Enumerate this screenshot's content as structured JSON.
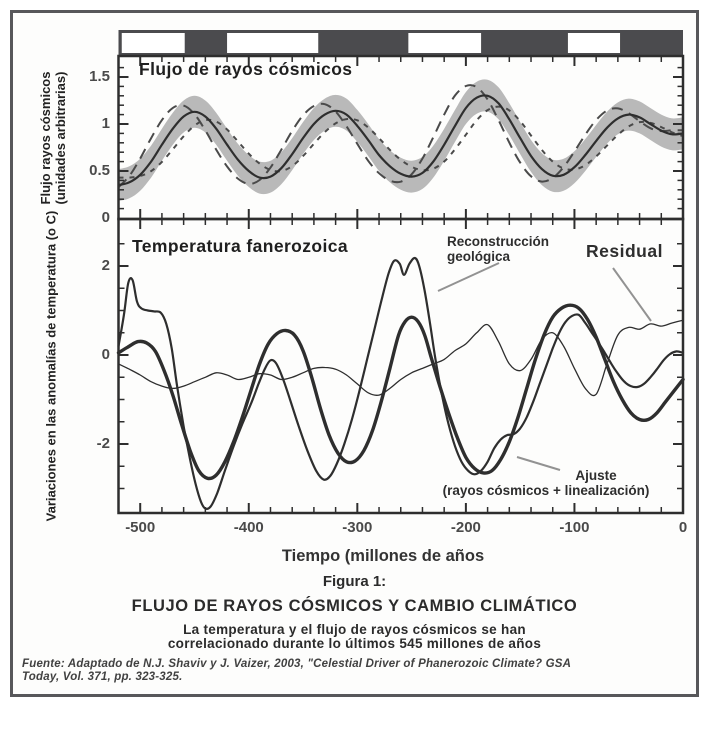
{
  "figure": {
    "caption_label": "Figura 1:",
    "caption_title": "FLUJO DE RAYOS CÓSMICOS Y CAMBIO CLIMÁTICO",
    "caption_sub1": "La temperatura y el flujo de rayos cósmicos se han",
    "caption_sub2": "correlacionado durante lo últimos  545 millones de años",
    "source_line1": "Fuente: Adaptado de N.J. Shaviv y J. Vaizer, 2003, \"Celestial Driver of Phanerozoic Climate? GSA",
    "source_line2": "Today, Vol. 371, pp. 323-325."
  },
  "flux_panel": {
    "title": "Flujo de rayos cósmicos",
    "ylabel_line1": "Flujo rayos cósmicos",
    "ylabel_line2": "(unidades arbitrarias)",
    "yticks": [
      {
        "label": "1.5",
        "v": 1.5
      },
      {
        "label": "1",
        "v": 1.0
      },
      {
        "label": "0.5",
        "v": 0.5
      },
      {
        "label": "0",
        "v": 0.0
      }
    ]
  },
  "temp_panel": {
    "title": "Temperatura fanerozoica",
    "ylabel": "Variaciones en las anomalías de temperatura (o C)",
    "yticks": [
      {
        "label": "2",
        "v": 2
      },
      {
        "label": "0",
        "v": 0
      },
      {
        "label": "-2",
        "v": -2
      }
    ],
    "annotations": {
      "reconstruction_line1": "Reconstrucción",
      "reconstruction_line2": "geológica",
      "residual": "Residual",
      "ajuste_line1": "Ajuste",
      "ajuste_line2": "(rayos cósmicos + linealización)"
    }
  },
  "xaxis": {
    "title": "Tiempo (millones de años",
    "ticks": [
      {
        "label": "-500",
        "my": -500
      },
      {
        "label": "-400",
        "my": -400
      },
      {
        "label": "-300",
        "my": -300
      },
      {
        "label": "-200",
        "my": -200
      },
      {
        "label": "-100",
        "my": -100
      },
      {
        "label": "0",
        "my": 0
      }
    ]
  },
  "colors": {
    "band": "#b9b9b9",
    "curve": "#2e2e2e",
    "dashed": "#4a4a4a",
    "stripe_dark": "#4b4b4e",
    "stripe_white": "#ffffff",
    "leader": "#929292",
    "axis": "#2e2e2e"
  },
  "chart_data": [
    {
      "type": "line",
      "title": "Flujo de rayos cósmicos",
      "ylabel": "Flujo rayos cósmicos (unidades arbitrarias)",
      "xlim": [
        -520,
        0
      ],
      "ylim": [
        0,
        1.7
      ],
      "ytick_values": [
        0,
        0.5,
        1,
        1.5
      ],
      "grid": false,
      "band_halfwidth": 0.17,
      "epoch_bar_white_segments_my": [
        [
          -517,
          -459
        ],
        [
          -420,
          -336
        ],
        [
          -253,
          -186
        ],
        [
          -106,
          -58
        ]
      ],
      "x": [
        -520,
        -510,
        -500,
        -490,
        -480,
        -470,
        -460,
        -450,
        -440,
        -430,
        -420,
        -410,
        -400,
        -390,
        -380,
        -370,
        -360,
        -350,
        -340,
        -330,
        -320,
        -310,
        -300,
        -290,
        -280,
        -270,
        -260,
        -250,
        -240,
        -230,
        -220,
        -210,
        -200,
        -190,
        -180,
        -170,
        -160,
        -150,
        -140,
        -130,
        -120,
        -110,
        -100,
        -90,
        -80,
        -70,
        -60,
        -50,
        -40,
        -30,
        -20,
        -10,
        0
      ],
      "series": [
        {
          "name": "flux_nominal",
          "style": "solid",
          "values": [
            0.35,
            0.38,
            0.46,
            0.6,
            0.78,
            0.95,
            1.08,
            1.13,
            1.08,
            0.95,
            0.78,
            0.62,
            0.5,
            0.43,
            0.44,
            0.53,
            0.68,
            0.85,
            1.0,
            1.1,
            1.14,
            1.1,
            0.98,
            0.83,
            0.67,
            0.55,
            0.47,
            0.44,
            0.48,
            0.6,
            0.78,
            0.98,
            1.17,
            1.28,
            1.3,
            1.22,
            1.05,
            0.85,
            0.66,
            0.52,
            0.45,
            0.46,
            0.54,
            0.67,
            0.82,
            0.96,
            1.06,
            1.1,
            1.07,
            1.0,
            0.93,
            0.89,
            0.9
          ]
        },
        {
          "name": "flux_model_variant_1",
          "style": "dashed-long",
          "derived_from": "flux_nominal",
          "shift_my": -13,
          "amp_scale": 1.22,
          "amp_center": 0.75
        },
        {
          "name": "flux_model_variant_2",
          "style": "dashed-short",
          "derived_from": "flux_nominal",
          "shift_my": 13,
          "amp_scale": 0.8,
          "amp_center": 0.75
        }
      ]
    },
    {
      "type": "line",
      "title": "Temperatura fanerozoica",
      "xlabel": "Tiempo (millones de años",
      "ylabel": "Variaciones en las anomalías de temperatura (o C)",
      "xlim": [
        -520,
        0
      ],
      "ylim": [
        -3.5,
        3
      ],
      "ytick_values": [
        -2,
        0,
        2
      ],
      "grid": false,
      "series": [
        {
          "name": "reconstruccion_geologica",
          "style": "medium",
          "points": [
            [
              -520,
              0.2
            ],
            [
              -515,
              0.9
            ],
            [
              -511,
              1.62
            ],
            [
              -507,
              1.68
            ],
            [
              -503,
              1.2
            ],
            [
              -499,
              1.05
            ],
            [
              -493,
              1.0
            ],
            [
              -487,
              0.98
            ],
            [
              -481,
              0.95
            ],
            [
              -476,
              0.7
            ],
            [
              -471,
              0.15
            ],
            [
              -466,
              -0.7
            ],
            [
              -460,
              -1.6
            ],
            [
              -454,
              -2.35
            ],
            [
              -449,
              -2.9
            ],
            [
              -444,
              -3.3
            ],
            [
              -440,
              -3.45
            ],
            [
              -435,
              -3.4
            ],
            [
              -429,
              -3.1
            ],
            [
              -422,
              -2.6
            ],
            [
              -414,
              -2.05
            ],
            [
              -406,
              -1.55
            ],
            [
              -398,
              -1.1
            ],
            [
              -391,
              -0.65
            ],
            [
              -385,
              -0.3
            ],
            [
              -380,
              -0.12
            ],
            [
              -375,
              -0.18
            ],
            [
              -369,
              -0.5
            ],
            [
              -362,
              -1.0
            ],
            [
              -354,
              -1.6
            ],
            [
              -346,
              -2.15
            ],
            [
              -338,
              -2.6
            ],
            [
              -331,
              -2.8
            ],
            [
              -325,
              -2.72
            ],
            [
              -319,
              -2.45
            ],
            [
              -312,
              -2.0
            ],
            [
              -305,
              -1.45
            ],
            [
              -298,
              -0.8
            ],
            [
              -291,
              -0.1
            ],
            [
              -284,
              0.6
            ],
            [
              -277,
              1.3
            ],
            [
              -271,
              1.85
            ],
            [
              -266,
              2.12
            ],
            [
              -261,
              2.05
            ],
            [
              -257,
              1.8
            ],
            [
              -252,
              2.05
            ],
            [
              -247,
              2.18
            ],
            [
              -243,
              2.0
            ],
            [
              -238,
              1.45
            ],
            [
              -233,
              0.7
            ],
            [
              -228,
              -0.1
            ],
            [
              -222,
              -0.9
            ],
            [
              -216,
              -1.55
            ],
            [
              -210,
              -2.05
            ],
            [
              -204,
              -2.4
            ],
            [
              -198,
              -2.6
            ],
            [
              -192,
              -2.68
            ],
            [
              -186,
              -2.6
            ],
            [
              -180,
              -2.4
            ],
            [
              -174,
              -2.1
            ],
            [
              -168,
              -1.9
            ],
            [
              -162,
              -1.8
            ],
            [
              -156,
              -1.78
            ],
            [
              -150,
              -1.65
            ],
            [
              -144,
              -1.4
            ],
            [
              -138,
              -1.05
            ],
            [
              -132,
              -0.65
            ],
            [
              -126,
              -0.25
            ],
            [
              -120,
              0.15
            ],
            [
              -114,
              0.5
            ],
            [
              -108,
              0.75
            ],
            [
              -102,
              0.88
            ],
            [
              -96,
              0.9
            ],
            [
              -90,
              0.72
            ],
            [
              -84,
              0.5
            ],
            [
              -78,
              0.28
            ],
            [
              -72,
              0.05
            ],
            [
              -66,
              -0.2
            ],
            [
              -60,
              -0.42
            ],
            [
              -54,
              -0.6
            ],
            [
              -48,
              -0.7
            ],
            [
              -42,
              -0.72
            ],
            [
              -36,
              -0.65
            ],
            [
              -30,
              -0.5
            ],
            [
              -24,
              -0.32
            ],
            [
              -18,
              -0.12
            ],
            [
              -12,
              0.02
            ],
            [
              -6,
              0.08
            ],
            [
              0,
              0.05
            ]
          ]
        },
        {
          "name": "ajuste_rayos_cosmicos_linealizacion",
          "style": "thick",
          "points": [
            [
              -520,
              0.05
            ],
            [
              -510,
              0.2
            ],
            [
              -502,
              0.3
            ],
            [
              -494,
              0.27
            ],
            [
              -486,
              0.08
            ],
            [
              -478,
              -0.35
            ],
            [
              -470,
              -0.9
            ],
            [
              -462,
              -1.55
            ],
            [
              -454,
              -2.15
            ],
            [
              -446,
              -2.6
            ],
            [
              -438,
              -2.77
            ],
            [
              -430,
              -2.7
            ],
            [
              -422,
              -2.4
            ],
            [
              -414,
              -1.95
            ],
            [
              -406,
              -1.4
            ],
            [
              -398,
              -0.8
            ],
            [
              -390,
              -0.2
            ],
            [
              -382,
              0.25
            ],
            [
              -374,
              0.48
            ],
            [
              -366,
              0.55
            ],
            [
              -358,
              0.45
            ],
            [
              -350,
              0.1
            ],
            [
              -342,
              -0.5
            ],
            [
              -334,
              -1.2
            ],
            [
              -326,
              -1.8
            ],
            [
              -318,
              -2.2
            ],
            [
              -310,
              -2.4
            ],
            [
              -302,
              -2.38
            ],
            [
              -294,
              -2.15
            ],
            [
              -286,
              -1.7
            ],
            [
              -278,
              -1.05
            ],
            [
              -270,
              -0.3
            ],
            [
              -262,
              0.45
            ],
            [
              -256,
              0.75
            ],
            [
              -250,
              0.85
            ],
            [
              -244,
              0.75
            ],
            [
              -238,
              0.45
            ],
            [
              -232,
              -0.05
            ],
            [
              -224,
              -0.7
            ],
            [
              -216,
              -1.3
            ],
            [
              -208,
              -1.85
            ],
            [
              -200,
              -2.3
            ],
            [
              -192,
              -2.55
            ],
            [
              -184,
              -2.65
            ],
            [
              -176,
              -2.6
            ],
            [
              -168,
              -2.35
            ],
            [
              -160,
              -1.95
            ],
            [
              -152,
              -1.4
            ],
            [
              -144,
              -0.75
            ],
            [
              -136,
              -0.1
            ],
            [
              -128,
              0.45
            ],
            [
              -120,
              0.85
            ],
            [
              -112,
              1.05
            ],
            [
              -104,
              1.12
            ],
            [
              -96,
              1.05
            ],
            [
              -88,
              0.8
            ],
            [
              -80,
              0.4
            ],
            [
              -72,
              -0.1
            ],
            [
              -64,
              -0.6
            ],
            [
              -56,
              -1.0
            ],
            [
              -48,
              -1.3
            ],
            [
              -40,
              -1.45
            ],
            [
              -32,
              -1.45
            ],
            [
              -24,
              -1.3
            ],
            [
              -16,
              -1.05
            ],
            [
              -8,
              -0.8
            ],
            [
              0,
              -0.55
            ]
          ]
        },
        {
          "name": "residual",
          "style": "thin",
          "points": [
            [
              -520,
              -0.2
            ],
            [
              -510,
              -0.32
            ],
            [
              -500,
              -0.45
            ],
            [
              -490,
              -0.6
            ],
            [
              -480,
              -0.7
            ],
            [
              -470,
              -0.75
            ],
            [
              -460,
              -0.7
            ],
            [
              -450,
              -0.6
            ],
            [
              -440,
              -0.5
            ],
            [
              -430,
              -0.4
            ],
            [
              -420,
              -0.45
            ],
            [
              -410,
              -0.55
            ],
            [
              -400,
              -0.5
            ],
            [
              -390,
              -0.42
            ],
            [
              -380,
              -0.45
            ],
            [
              -370,
              -0.55
            ],
            [
              -360,
              -0.5
            ],
            [
              -350,
              -0.4
            ],
            [
              -340,
              -0.3
            ],
            [
              -330,
              -0.28
            ],
            [
              -320,
              -0.32
            ],
            [
              -310,
              -0.45
            ],
            [
              -300,
              -0.65
            ],
            [
              -290,
              -0.85
            ],
            [
              -280,
              -0.9
            ],
            [
              -270,
              -0.75
            ],
            [
              -260,
              -0.55
            ],
            [
              -250,
              -0.4
            ],
            [
              -240,
              -0.3
            ],
            [
              -230,
              -0.2
            ],
            [
              -220,
              -0.1
            ],
            [
              -210,
              0.1
            ],
            [
              -200,
              0.25
            ],
            [
              -190,
              0.5
            ],
            [
              -180,
              0.68
            ],
            [
              -170,
              0.3
            ],
            [
              -160,
              -0.2
            ],
            [
              -150,
              -0.35
            ],
            [
              -140,
              -0.1
            ],
            [
              -130,
              0.35
            ],
            [
              -120,
              0.5
            ],
            [
              -110,
              0.2
            ],
            [
              -100,
              -0.3
            ],
            [
              -90,
              -0.75
            ],
            [
              -80,
              -0.88
            ],
            [
              -70,
              -0.2
            ],
            [
              -60,
              0.45
            ],
            [
              -50,
              0.62
            ],
            [
              -40,
              0.58
            ],
            [
              -30,
              0.7
            ],
            [
              -20,
              0.65
            ],
            [
              -10,
              0.72
            ],
            [
              0,
              0.78
            ]
          ]
        }
      ]
    }
  ]
}
